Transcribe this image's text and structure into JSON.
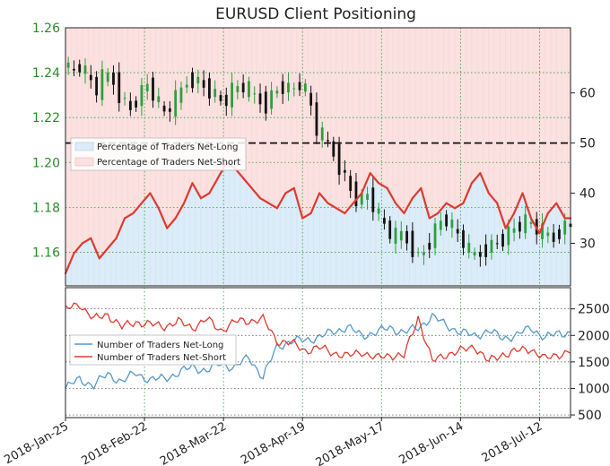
{
  "chart_data": {
    "title": "EURUSD Client Positioning",
    "colors": {
      "net_long": "#5599cc",
      "net_short": "#dd3b2e",
      "long_fill": "#dcecf8",
      "short_fill": "#fbe1e0",
      "price_up": "#2e9e3e",
      "price_down": "#111111",
      "grid": "#2e9e3e",
      "left_tick": "#2a8a2a"
    },
    "top_panel": {
      "type": "candlestick+line",
      "left_axis": {
        "ylim": [
          1.145,
          1.26
        ],
        "ticks": [
          1.16,
          1.18,
          1.2,
          1.22,
          1.24,
          1.26
        ],
        "tick_labels": [
          "1.16",
          "1.18",
          "1.20",
          "1.22",
          "1.24",
          "1.26"
        ]
      },
      "right_axis": {
        "ylim": [
          21.5,
          73
        ],
        "ticks": [
          30,
          40,
          50,
          60
        ],
        "tick_labels": [
          "30",
          "40",
          "50",
          "60"
        ]
      },
      "reference_line": 50,
      "legend": {
        "placement": "upper-left",
        "entries": [
          "Percentage of Traders Net-Long",
          "Percentage of Traders Net-Short"
        ]
      },
      "x_index": [
        0,
        3,
        6,
        9,
        12,
        15,
        18,
        21,
        24,
        27,
        30,
        33,
        36,
        39,
        42,
        45,
        48,
        51,
        54,
        57,
        60,
        63,
        66,
        69,
        72,
        75,
        78,
        81,
        84,
        87,
        90,
        93,
        96,
        99,
        102,
        105,
        108,
        111,
        114,
        117,
        120,
        123,
        126,
        129,
        132,
        135,
        138,
        141,
        144,
        147,
        150,
        153,
        156,
        159,
        162,
        165,
        168,
        171,
        174,
        177
      ],
      "pct_net_long": [
        24,
        28,
        30,
        31,
        27,
        29,
        31,
        35,
        36,
        38,
        40,
        37,
        33,
        35,
        38,
        42,
        39,
        40,
        43,
        46,
        45,
        43,
        41,
        39,
        38,
        37,
        40,
        41,
        35,
        36,
        40,
        38,
        37,
        36,
        38,
        40,
        44,
        42,
        41,
        38,
        36,
        39,
        41,
        35,
        36,
        38,
        37,
        38,
        42,
        44,
        40,
        38,
        33,
        36,
        40,
        35,
        32,
        36,
        38,
        35
      ],
      "price": [
        1.245,
        1.24,
        1.243,
        1.238,
        1.232,
        1.24,
        1.236,
        1.228,
        1.224,
        1.23,
        1.235,
        1.228,
        1.222,
        1.226,
        1.232,
        1.238,
        1.236,
        1.233,
        1.23,
        1.226,
        1.232,
        1.234,
        1.232,
        1.228,
        1.226,
        1.232,
        1.234,
        1.232,
        1.235,
        1.23,
        1.214,
        1.21,
        1.204,
        1.196,
        1.188,
        1.182,
        1.186,
        1.178,
        1.172,
        1.166,
        1.168,
        1.164,
        1.158,
        1.162,
        1.17,
        1.176,
        1.171,
        1.166,
        1.16,
        1.158,
        1.162,
        1.164,
        1.166,
        1.17,
        1.172,
        1.174,
        1.17,
        1.168,
        1.166,
        1.172
      ]
    },
    "bottom_panel": {
      "type": "line",
      "right_axis": {
        "ylim": [
          450,
          2900
        ],
        "ticks": [
          500,
          1000,
          1500,
          2000,
          2500
        ],
        "tick_labels": [
          "500",
          "1000",
          "1500",
          "2000",
          "2500"
        ]
      },
      "legend": {
        "placement": "center-left",
        "entries": [
          "Number of Traders Net-Long",
          "Number of Traders Net-Short"
        ]
      },
      "series": [
        {
          "name": "Number of Traders Net-Long",
          "x": [
            0,
            5,
            10,
            15,
            20,
            25,
            30,
            35,
            40,
            45,
            50,
            55,
            60,
            65,
            70,
            75,
            80,
            85,
            90,
            95,
            100,
            105,
            110,
            115,
            120,
            125,
            130,
            135,
            140,
            145,
            150,
            155,
            160,
            165,
            170,
            175,
            179
          ],
          "values": [
            1000,
            1180,
            1050,
            1280,
            1120,
            1300,
            1150,
            1200,
            1280,
            1420,
            1320,
            1480,
            1380,
            1600,
            1200,
            1800,
            1880,
            1920,
            1960,
            2080,
            2150,
            2000,
            2050,
            2150,
            2050,
            2150,
            2350,
            2200,
            2050,
            2000,
            2080,
            1950,
            2000,
            2150,
            1950,
            2050,
            2050
          ]
        },
        {
          "name": "Number of Traders Net-Short",
          "x": [
            0,
            5,
            10,
            15,
            20,
            25,
            30,
            35,
            40,
            45,
            50,
            55,
            60,
            65,
            70,
            75,
            80,
            85,
            90,
            95,
            100,
            105,
            110,
            115,
            120,
            125,
            130,
            135,
            140,
            145,
            150,
            155,
            160,
            165,
            170,
            175,
            179
          ],
          "values": [
            2480,
            2600,
            2300,
            2400,
            2150,
            2260,
            2200,
            2180,
            2250,
            2150,
            2300,
            2100,
            2250,
            2280,
            2300,
            1900,
            1850,
            1720,
            1760,
            1680,
            1600,
            1700,
            1560,
            1640,
            1600,
            2350,
            1500,
            1650,
            1700,
            1800,
            1500,
            1650,
            1700,
            1750,
            1550,
            1650,
            1700
          ]
        }
      ]
    },
    "x_axis": {
      "n_points": 180,
      "dates": [
        "2018-Jan-25",
        "2018-Feb-22",
        "2018-Mar-22",
        "2018-Apr-19",
        "2018-May-17",
        "2018-Jun-14",
        "2018-Jul-12"
      ],
      "date_index": [
        0,
        28,
        56,
        84,
        112,
        140,
        168
      ],
      "grid": true
    }
  }
}
